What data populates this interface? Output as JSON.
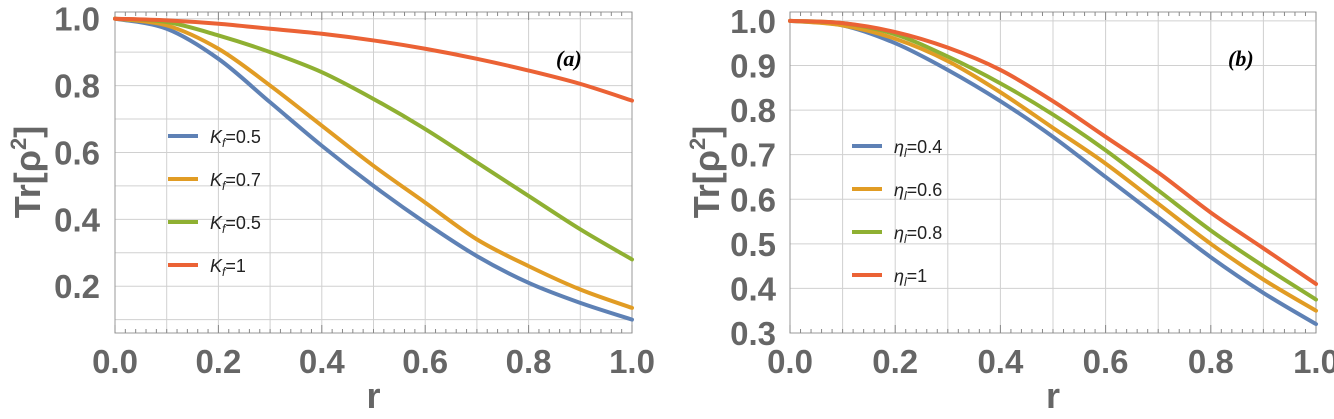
{
  "chart_data": [
    {
      "type": "line",
      "panel_label": "(a)",
      "xlabel": "r",
      "ylabel": "Tr[ρ2]",
      "ylabel_base": "Tr[ρ",
      "ylabel_sup": "2",
      "ylabel_close": "]",
      "xlim": [
        0,
        1
      ],
      "ylim": [
        0.06,
        1.02
      ],
      "grid": true,
      "xticks": [
        0.0,
        0.2,
        0.4,
        0.6,
        0.8,
        1.0
      ],
      "xtick_labels": [
        "0.0",
        "0.2",
        "0.4",
        "0.6",
        "0.8",
        "1.0"
      ],
      "yticks": [
        0.2,
        0.4,
        0.6,
        0.8,
        1.0
      ],
      "ytick_labels": [
        "0.2",
        "0.4",
        "0.6",
        "0.8",
        "1.0"
      ],
      "legend_position": "center-left",
      "series": [
        {
          "name": "K_f=0.5",
          "legend_symbol": "K",
          "legend_sub": "f",
          "legend_value": "=0.5",
          "color": "#5E81B5",
          "x": [
            0,
            0.1,
            0.2,
            0.3,
            0.4,
            0.5,
            0.6,
            0.7,
            0.8,
            0.9,
            1.0
          ],
          "y": [
            1.0,
            0.97,
            0.88,
            0.75,
            0.62,
            0.5,
            0.39,
            0.29,
            0.21,
            0.15,
            0.1
          ]
        },
        {
          "name": "K_f=0.7",
          "legend_symbol": "K",
          "legend_sub": "f",
          "legend_value": "=0.7",
          "color": "#E19C24",
          "x": [
            0,
            0.1,
            0.2,
            0.3,
            0.4,
            0.5,
            0.6,
            0.7,
            0.8,
            0.9,
            1.0
          ],
          "y": [
            1.0,
            0.98,
            0.91,
            0.8,
            0.68,
            0.56,
            0.45,
            0.34,
            0.26,
            0.19,
            0.135
          ]
        },
        {
          "name": "K_f=0.5",
          "legend_symbol": "K",
          "legend_sub": "f",
          "legend_value": "=0.5",
          "color": "#8FB032",
          "x": [
            0,
            0.1,
            0.2,
            0.3,
            0.4,
            0.5,
            0.6,
            0.7,
            0.8,
            0.9,
            1.0
          ],
          "y": [
            1.0,
            0.99,
            0.95,
            0.9,
            0.84,
            0.76,
            0.67,
            0.57,
            0.47,
            0.37,
            0.28
          ]
        },
        {
          "name": "K_f=1",
          "legend_symbol": "K",
          "legend_sub": "f",
          "legend_value": "=1",
          "color": "#EB6235",
          "x": [
            0,
            0.1,
            0.2,
            0.3,
            0.4,
            0.5,
            0.6,
            0.7,
            0.8,
            0.9,
            1.0
          ],
          "y": [
            1.0,
            0.995,
            0.985,
            0.97,
            0.955,
            0.935,
            0.91,
            0.88,
            0.845,
            0.805,
            0.755
          ]
        }
      ]
    },
    {
      "type": "line",
      "panel_label": "(b)",
      "xlabel": "r",
      "ylabel": "Tr[ρ2]",
      "ylabel_base": "Tr[ρ",
      "ylabel_sup": "2",
      "ylabel_close": "]",
      "xlim": [
        0,
        1
      ],
      "ylim": [
        0.3,
        1.02
      ],
      "grid": true,
      "xticks": [
        0.0,
        0.2,
        0.4,
        0.6,
        0.8,
        1.0
      ],
      "xtick_labels": [
        "0.0",
        "0.2",
        "0.4",
        "0.6",
        "0.8",
        "1.0"
      ],
      "yticks": [
        0.3,
        0.4,
        0.5,
        0.6,
        0.7,
        0.8,
        0.9,
        1.0
      ],
      "ytick_labels": [
        "0.3",
        "0.4",
        "0.5",
        "0.6",
        "0.7",
        "0.8",
        "0.9",
        "1.0"
      ],
      "legend_position": "center-left",
      "series": [
        {
          "name": "η_l=0.4",
          "legend_symbol": "η",
          "legend_sub": "l",
          "legend_value": "=0.4",
          "color": "#5E81B5",
          "x": [
            0,
            0.1,
            0.2,
            0.3,
            0.4,
            0.5,
            0.6,
            0.7,
            0.8,
            0.9,
            1.0
          ],
          "y": [
            1.0,
            0.99,
            0.95,
            0.89,
            0.82,
            0.74,
            0.65,
            0.56,
            0.47,
            0.39,
            0.32
          ]
        },
        {
          "name": "η_l=0.6",
          "legend_symbol": "η",
          "legend_sub": "l",
          "legend_value": "=0.6",
          "color": "#E19C24",
          "x": [
            0,
            0.1,
            0.2,
            0.3,
            0.4,
            0.5,
            0.6,
            0.7,
            0.8,
            0.9,
            1.0
          ],
          "y": [
            1.0,
            0.99,
            0.96,
            0.91,
            0.84,
            0.76,
            0.68,
            0.59,
            0.5,
            0.42,
            0.35
          ]
        },
        {
          "name": "η_l=0.8",
          "legend_symbol": "η",
          "legend_sub": "l",
          "legend_value": "=0.8",
          "color": "#8FB032",
          "x": [
            0,
            0.1,
            0.2,
            0.3,
            0.4,
            0.5,
            0.6,
            0.7,
            0.8,
            0.9,
            1.0
          ],
          "y": [
            1.0,
            0.995,
            0.97,
            0.92,
            0.86,
            0.79,
            0.71,
            0.62,
            0.53,
            0.45,
            0.375
          ]
        },
        {
          "name": "η_l=1",
          "legend_symbol": "η",
          "legend_sub": "l",
          "legend_value": "=1",
          "color": "#EB6235",
          "x": [
            0,
            0.1,
            0.2,
            0.3,
            0.4,
            0.5,
            0.6,
            0.7,
            0.8,
            0.9,
            1.0
          ],
          "y": [
            1.0,
            0.995,
            0.975,
            0.94,
            0.89,
            0.82,
            0.74,
            0.66,
            0.57,
            0.49,
            0.41
          ]
        }
      ]
    }
  ]
}
